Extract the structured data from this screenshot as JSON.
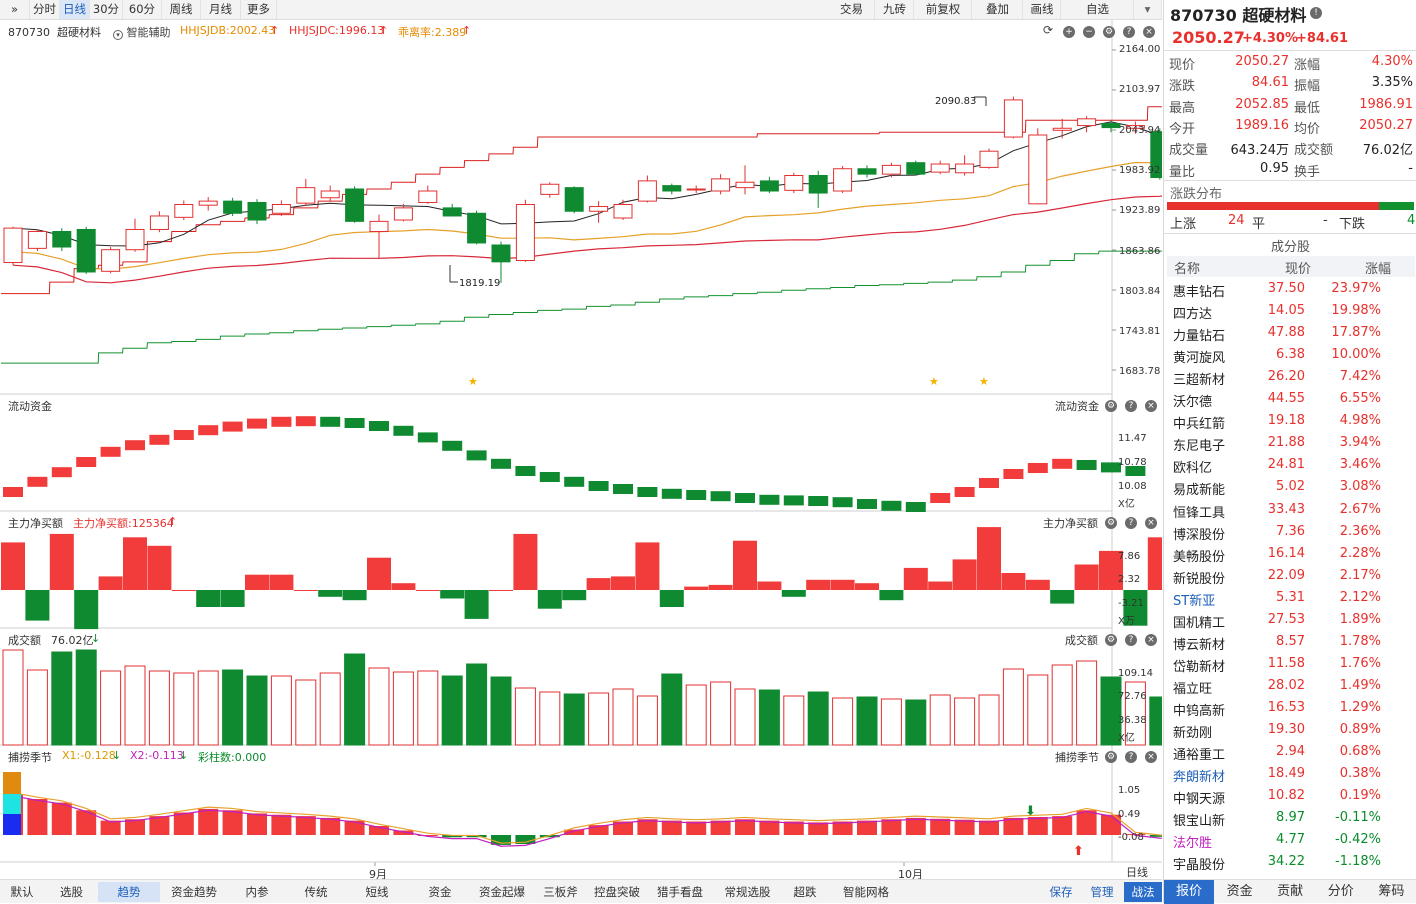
{
  "toolbar": {
    "expand": "»",
    "items": [
      "分时",
      "日线",
      "30分",
      "60分",
      "周线",
      "月线",
      "更多"
    ],
    "active": "日线",
    "right_items": [
      "交易",
      "九砖",
      "前复权",
      "叠加",
      "画线",
      "自选"
    ]
  },
  "stock": {
    "code": "870730",
    "name": "超硬材料",
    "price": "2050.27",
    "pct": "+4.30%",
    "chg": "+84.61"
  },
  "indicators": {
    "assist": "智能辅助",
    "jdb": "HHJSJDB:2002.43",
    "jdc": "HHJSJDC:1996.13",
    "rate": "乖离率:2.389",
    "high_label": "2090.83",
    "low_label": "1819.19"
  },
  "price_axis": [
    "2164.00",
    "2103.97",
    "2043.94",
    "1983.92",
    "1923.89",
    "1863.86",
    "1803.84",
    "1743.81",
    "1683.78"
  ],
  "flow": {
    "title": "流动资金",
    "axis": [
      "11.47",
      "10.78",
      "10.08"
    ],
    "unit": "X亿"
  },
  "main_net": {
    "title": "主力净买额",
    "value": "主力净买额:125364",
    "axis": [
      "7.86",
      "2.32",
      "-3.21"
    ],
    "unit": "X万"
  },
  "volume": {
    "title": "成交额",
    "value": "76.02亿",
    "axis": [
      "109.14",
      "72.76",
      "36.38"
    ],
    "unit": "X亿"
  },
  "season": {
    "title": "捕捞季节",
    "x1": "X1:-0.128",
    "x2": "X2:-0.113",
    "caizhu": "彩柱数:0.000",
    "axis": [
      "1.05",
      "0.49",
      "-0.08"
    ]
  },
  "months": [
    "9月",
    "10月"
  ],
  "period_label": "日线",
  "bottom_tabs": [
    "默认",
    "选股",
    "趋势",
    "资金趋势",
    "内参",
    "传统",
    "短线",
    "资金",
    "资金起爆",
    "三板斧",
    "控盘突破",
    "猎手看盘",
    "常规选股",
    "超跌",
    "智能网格"
  ],
  "bottom_active": "趋势",
  "bottom_right": [
    "保存",
    "管理",
    "战法"
  ],
  "quote": [
    {
      "l1": "现价",
      "v1": "2050.27",
      "l2": "涨幅",
      "v2": "4.30%",
      "c1": "red",
      "c2": "red"
    },
    {
      "l1": "涨跌",
      "v1": "84.61",
      "l2": "振幅",
      "v2": "3.35%",
      "c1": "red",
      "c2": "dark"
    },
    {
      "l1": "最高",
      "v1": "2052.85",
      "l2": "最低",
      "v2": "1986.91",
      "c1": "red",
      "c2": "red"
    },
    {
      "l1": "今开",
      "v1": "1989.16",
      "l2": "均价",
      "v2": "2050.27",
      "c1": "red",
      "c2": "red"
    },
    {
      "l1": "成交量",
      "v1": "643.24万",
      "l2": "成交额",
      "v2": "76.02亿",
      "c1": "dark",
      "c2": "dark"
    },
    {
      "l1": "量比",
      "v1": "0.95",
      "l2": "换手",
      "v2": "-",
      "c1": "dark",
      "c2": "dark"
    }
  ],
  "distribution": {
    "title": "涨跌分布",
    "up_label": "上涨",
    "up": "24",
    "flat_label": "平",
    "flat": "-",
    "down_label": "下跌",
    "down": "4",
    "up_ratio": 0.857
  },
  "components": {
    "title": "成分股",
    "headers": [
      "名称",
      "现价",
      "涨幅"
    ],
    "rows": [
      [
        "惠丰钻石",
        "37.50",
        "23.97%",
        "red",
        "dark"
      ],
      [
        "四方达",
        "14.05",
        "19.98%",
        "red",
        "dark"
      ],
      [
        "力量钻石",
        "47.88",
        "17.87%",
        "red",
        "dark"
      ],
      [
        "黄河旋风",
        "6.38",
        "10.00%",
        "red",
        "dark"
      ],
      [
        "三超新材",
        "26.20",
        "7.42%",
        "red",
        "dark"
      ],
      [
        "沃尔德",
        "44.55",
        "6.55%",
        "red",
        "dark"
      ],
      [
        "中兵红箭",
        "19.18",
        "4.98%",
        "red",
        "dark"
      ],
      [
        "东尼电子",
        "21.88",
        "3.94%",
        "red",
        "dark"
      ],
      [
        "欧科亿",
        "24.81",
        "3.46%",
        "red",
        "dark"
      ],
      [
        "易成新能",
        "5.02",
        "3.08%",
        "red",
        "dark"
      ],
      [
        "恒锋工具",
        "33.43",
        "2.67%",
        "red",
        "dark"
      ],
      [
        "博深股份",
        "7.36",
        "2.36%",
        "red",
        "dark"
      ],
      [
        "美畅股份",
        "16.14",
        "2.28%",
        "red",
        "dark"
      ],
      [
        "新锐股份",
        "22.09",
        "2.17%",
        "red",
        "dark"
      ],
      [
        "ST新亚",
        "5.31",
        "2.12%",
        "red",
        "blue"
      ],
      [
        "国机精工",
        "27.53",
        "1.89%",
        "red",
        "dark"
      ],
      [
        "博云新材",
        "8.57",
        "1.78%",
        "red",
        "dark"
      ],
      [
        "岱勒新材",
        "11.58",
        "1.76%",
        "red",
        "dark"
      ],
      [
        "福立旺",
        "28.02",
        "1.49%",
        "red",
        "dark"
      ],
      [
        "中钨高新",
        "16.53",
        "1.29%",
        "red",
        "dark"
      ],
      [
        "新劲刚",
        "19.30",
        "0.89%",
        "red",
        "dark"
      ],
      [
        "通裕重工",
        "2.94",
        "0.68%",
        "red",
        "dark"
      ],
      [
        "奔朗新材",
        "18.49",
        "0.38%",
        "red",
        "blue"
      ],
      [
        "中钢天源",
        "10.82",
        "0.19%",
        "red",
        "dark"
      ],
      [
        "银宝山新",
        "8.97",
        "-0.11%",
        "green",
        "dark"
      ],
      [
        "法尔胜",
        "4.77",
        "-0.42%",
        "green",
        "magenta"
      ],
      [
        "宇晶股份",
        "34.22",
        "-1.18%",
        "green",
        "dark"
      ]
    ]
  },
  "right_tabs": [
    "报价",
    "资金",
    "贡献",
    "分价",
    "筹码"
  ],
  "right_active": "报价",
  "chart_data": {
    "type": "candlestick",
    "candles": [
      [
        1849,
        1900,
        1845,
        1902
      ],
      [
        1870,
        1895,
        1866,
        1898
      ],
      [
        1895,
        1872,
        1866,
        1900
      ],
      [
        1898,
        1835,
        1832,
        1902
      ],
      [
        1836,
        1868,
        1833,
        1872
      ],
      [
        1868,
        1898,
        1865,
        1914
      ],
      [
        1898,
        1918,
        1894,
        1925
      ],
      [
        1916,
        1935,
        1912,
        1941
      ],
      [
        1934,
        1940,
        1926,
        1946
      ],
      [
        1940,
        1922,
        1918,
        1945
      ],
      [
        1938,
        1912,
        1906,
        1943
      ],
      [
        1922,
        1935,
        1918,
        1941
      ],
      [
        1937,
        1960,
        1933,
        1973
      ],
      [
        1945,
        1955,
        1940,
        1963
      ],
      [
        1958,
        1910,
        1908,
        1962
      ],
      [
        1895,
        1910,
        1854,
        1920
      ],
      [
        1912,
        1930,
        1910,
        1936
      ],
      [
        1938,
        1955,
        1936,
        1963
      ],
      [
        1930,
        1918,
        1920,
        1936
      ],
      [
        1922,
        1878,
        1876,
        1926
      ],
      [
        1875,
        1850,
        1819,
        1880
      ],
      [
        1852,
        1935,
        1850,
        1942
      ],
      [
        1950,
        1965,
        1945,
        1968
      ],
      [
        1960,
        1925,
        1922,
        1962
      ],
      [
        1925,
        1932,
        1908,
        1940
      ],
      [
        1915,
        1935,
        1912,
        1942
      ],
      [
        1940,
        1970,
        1938,
        1978
      ],
      [
        1963,
        1955,
        1950,
        1966
      ],
      [
        1958,
        1958,
        1952,
        1963
      ],
      [
        1955,
        1973,
        1950,
        1980
      ],
      [
        1960,
        1968,
        1950,
        1993
      ],
      [
        1970,
        1955,
        1952,
        1976
      ],
      [
        1956,
        1978,
        1952,
        1982
      ],
      [
        1978,
        1952,
        1930,
        1985
      ],
      [
        1955,
        1988,
        1952,
        1992
      ],
      [
        1988,
        1980,
        1975,
        1993
      ],
      [
        1980,
        1993,
        1975,
        1997
      ],
      [
        1997,
        1980,
        1978,
        2000
      ],
      [
        1983,
        1995,
        1980,
        2000
      ],
      [
        1982,
        1995,
        1978,
        2008
      ],
      [
        1990,
        2014,
        1988,
        2018
      ],
      [
        2035,
        2090,
        2033,
        2095
      ],
      [
        1936,
        2038,
        1935,
        2048
      ],
      [
        2045,
        2048,
        2033,
        2062
      ],
      [
        2052,
        2062,
        2042,
        2066
      ],
      [
        2055,
        2049,
        2042,
        2060
      ],
      [
        2048,
        2052,
        2040,
        2058
      ],
      [
        2043,
        1975,
        1972,
        2048
      ],
      [
        1990,
        2050,
        1987,
        2053
      ]
    ],
    "price_range": [
      1683.78,
      2164.0
    ],
    "series": [
      {
        "name": "HHJSJDB",
        "value": 2002.43
      },
      {
        "name": "HHJSJDC",
        "value": 1996.13
      }
    ],
    "annotations": [
      {
        "text": "2090.83"
      },
      {
        "text": "1819.19"
      }
    ],
    "panels": [
      {
        "name": "流动资金",
        "unit": "X亿"
      },
      {
        "name": "主力净买额",
        "unit": "X万"
      },
      {
        "name": "成交额",
        "unit": "X亿"
      },
      {
        "name": "捕捞季节"
      }
    ]
  },
  "colors": {
    "up": "#f23c3c",
    "down": "#0f8a31",
    "accent": "#1f5fb8"
  }
}
